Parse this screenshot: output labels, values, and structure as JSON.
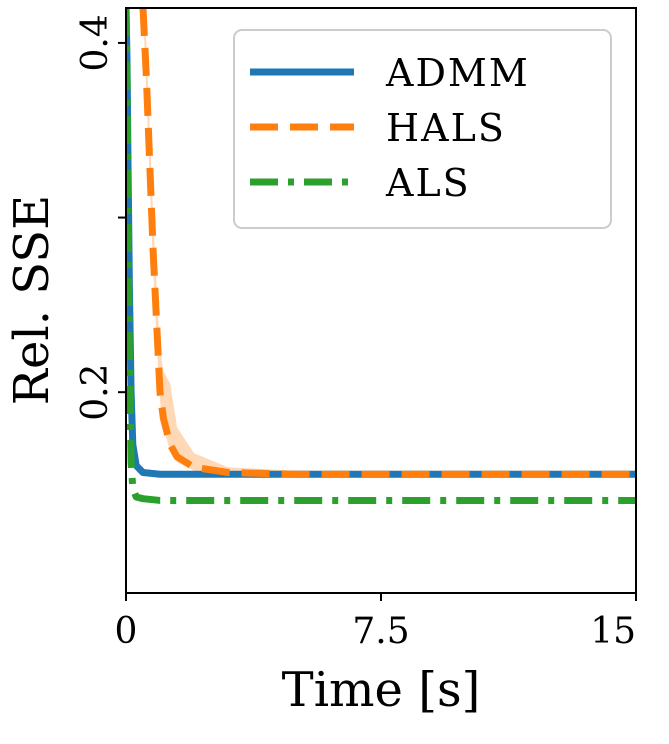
{
  "chart_data": {
    "type": "line",
    "xlabel": "Time [s]",
    "ylabel": "Rel. SSE",
    "xlim": [
      0,
      15
    ],
    "ylim": [
      0.085,
      0.42
    ],
    "xticks": [
      0,
      7.5,
      15
    ],
    "xtick_labels": [
      "0",
      "7.5",
      "15"
    ],
    "yticks": [
      0.2,
      0.3,
      0.4
    ],
    "ytick_labels": [
      "0.2",
      "",
      "0.4"
    ],
    "grid": false,
    "legend_position": "top-right",
    "series": [
      {
        "name": "ADMM",
        "color": "#1f77b4",
        "dash": "solid",
        "x": [
          0,
          0.03,
          0.06,
          0.1,
          0.15,
          0.2,
          0.3,
          0.5,
          1,
          2,
          5,
          10,
          15
        ],
        "y": [
          0.42,
          0.39,
          0.33,
          0.26,
          0.2,
          0.17,
          0.158,
          0.154,
          0.153,
          0.153,
          0.153,
          0.153,
          0.153
        ]
      },
      {
        "name": "HALS",
        "color": "#ff7f0e",
        "dash": "dashed",
        "x": [
          0.5,
          0.6,
          0.7,
          0.8,
          0.9,
          1.0,
          1.1,
          1.3,
          1.5,
          2,
          3,
          5,
          10,
          15
        ],
        "y": [
          0.42,
          0.38,
          0.33,
          0.28,
          0.24,
          0.2,
          0.185,
          0.17,
          0.163,
          0.157,
          0.154,
          0.153,
          0.153,
          0.153
        ],
        "band_upper": [
          0.42,
          0.4,
          0.35,
          0.3,
          0.26,
          0.225,
          0.212,
          0.205,
          0.18,
          0.165,
          0.157,
          0.155,
          0.155,
          0.155
        ],
        "band_lower": [
          0.42,
          0.37,
          0.32,
          0.27,
          0.23,
          0.195,
          0.18,
          0.166,
          0.16,
          0.155,
          0.152,
          0.151,
          0.151,
          0.151
        ]
      },
      {
        "name": "ALS",
        "color": "#2ca02c",
        "dash": "dashdot",
        "x": [
          0,
          0.03,
          0.06,
          0.1,
          0.15,
          0.2,
          0.3,
          0.5,
          1,
          2,
          5,
          10,
          15
        ],
        "y": [
          0.42,
          0.38,
          0.3,
          0.22,
          0.16,
          0.145,
          0.14,
          0.139,
          0.138,
          0.138,
          0.138,
          0.138,
          0.138
        ]
      }
    ]
  }
}
